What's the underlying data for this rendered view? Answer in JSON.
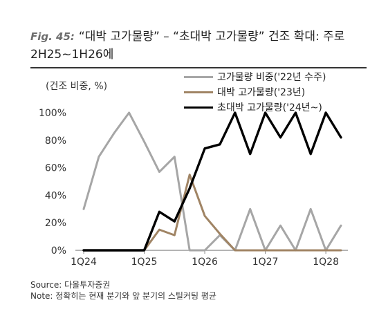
{
  "header": {
    "fig_label": "Fig. 45:",
    "title": "“대박 고가물량” – “초대박 고가물량” 건조 확대: 주로 2H25~1H26에"
  },
  "chart_data": {
    "type": "line",
    "unit_label": "(건조 비중, %)",
    "xlabel": "",
    "ylabel": "",
    "x_tick_labels": [
      "1Q24",
      "1Q25",
      "1Q26",
      "1Q27",
      "1Q28"
    ],
    "x_tick_positions": [
      0,
      4,
      8,
      12,
      16
    ],
    "x_range": [
      0,
      17
    ],
    "ylim": [
      0,
      100
    ],
    "y_tick_labels": [
      "0%",
      "20%",
      "40%",
      "60%",
      "80%",
      "100%"
    ],
    "grid": false,
    "legend_position": "top-right",
    "series": [
      {
        "name": "고가물량 비중('22년 수주)",
        "color": "#a6a6a6",
        "x": [
          0,
          1,
          2,
          3,
          4,
          5,
          6,
          7,
          8,
          9,
          10,
          11,
          12,
          13,
          14,
          15,
          16,
          17
        ],
        "values": [
          30,
          68,
          85,
          100,
          79,
          57,
          68,
          0,
          0,
          11,
          0,
          30,
          0,
          18,
          0,
          30,
          0,
          18
        ]
      },
      {
        "name": "대박 고가물량('23년)",
        "color": "#a08464",
        "x": [
          0,
          1,
          2,
          3,
          4,
          5,
          6,
          7,
          8,
          9,
          10,
          11,
          12,
          13,
          14,
          15,
          16,
          17
        ],
        "values": [
          0,
          0,
          0,
          0,
          0,
          15,
          11,
          55,
          25,
          12,
          0,
          0,
          0,
          0,
          0,
          0,
          0,
          0
        ]
      },
      {
        "name": "초대박 고가물량('24년~)",
        "color": "#000000",
        "x": [
          0,
          1,
          2,
          3,
          4,
          5,
          6,
          7,
          8,
          9,
          10,
          11,
          12,
          13,
          14,
          15,
          16,
          17
        ],
        "values": [
          0,
          0,
          0,
          0,
          0,
          28,
          21,
          45,
          74,
          77,
          100,
          70,
          100,
          82,
          100,
          70,
          100,
          82
        ]
      }
    ]
  },
  "footer": {
    "source": "Source: 다올투자증권",
    "note": "Note: 정확히는 현재 분기와 앞 분기의 스틸커팅 평균"
  }
}
